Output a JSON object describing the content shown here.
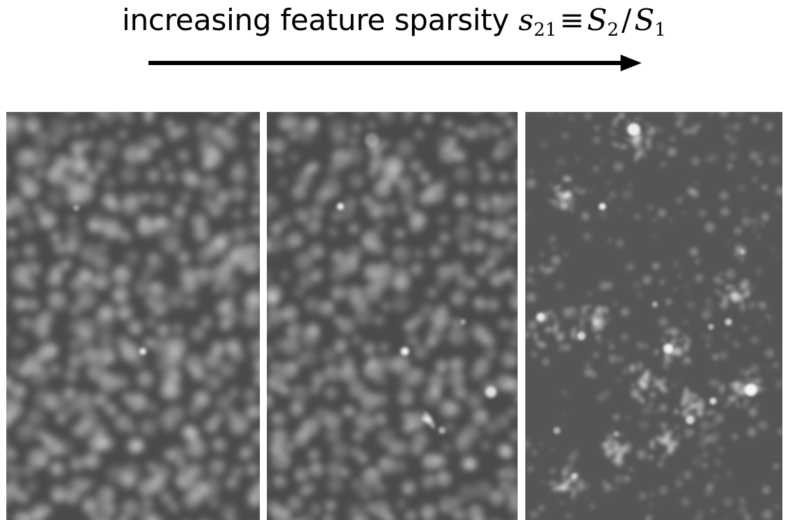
{
  "header": {
    "prefix": "increasing feature sparsity",
    "math": {
      "var_lower": "s",
      "sub_lower": "21",
      "equiv": "≡",
      "var_num": "S",
      "sub_num": "2",
      "slash": "/",
      "var_den": "S",
      "sub_den": "1"
    }
  },
  "arrow": {
    "icon": "right-arrow-icon",
    "color": "#000000"
  },
  "panels": [
    {
      "id": "panel-1",
      "texture": "dense-smooth"
    },
    {
      "id": "panel-2",
      "texture": "medium-sparse"
    },
    {
      "id": "panel-3",
      "texture": "sparse-filaments"
    }
  ],
  "colors": {
    "background": "#ffffff",
    "panel_base": "#4a4a4a",
    "highlight": "#ffffff"
  }
}
